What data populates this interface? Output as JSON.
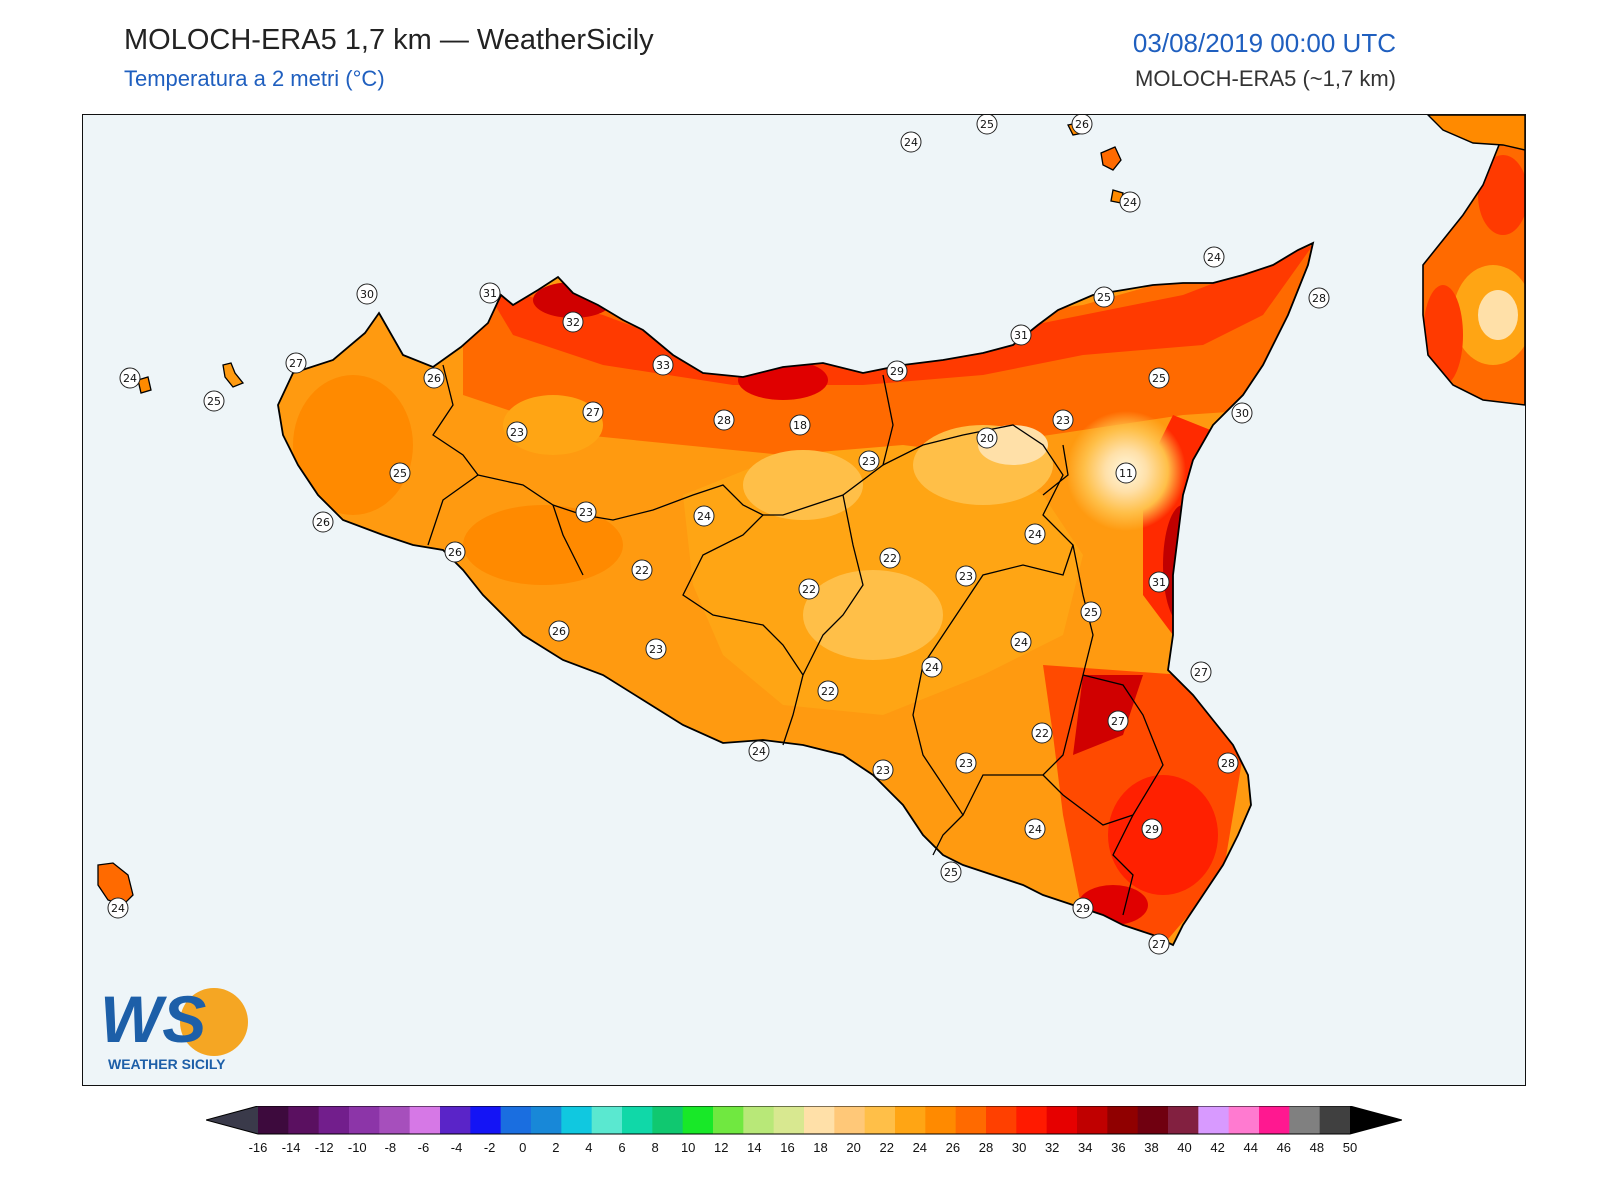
{
  "header": {
    "title": "MOLOCH-ERA5 1,7 km — WeatherSicily",
    "subtitle": "Temperatura a 2 metri (°C)",
    "datetime": "03/08/2019 00:00 UTC",
    "model": "MOLOCH-ERA5 (~1,7 km)"
  },
  "logo": {
    "text": "WEATHER SICILY",
    "letters": "WS"
  },
  "stations": [
    {
      "value": "24"
    },
    {
      "value": "25"
    },
    {
      "value": "26"
    },
    {
      "value": "24"
    },
    {
      "value": "24"
    },
    {
      "value": "25"
    },
    {
      "value": "28"
    },
    {
      "value": "30"
    },
    {
      "value": "31"
    },
    {
      "value": "32"
    },
    {
      "value": "27"
    },
    {
      "value": "26"
    },
    {
      "value": "24"
    },
    {
      "value": "25"
    },
    {
      "value": "33"
    },
    {
      "value": "29"
    },
    {
      "value": "31"
    },
    {
      "value": "25"
    },
    {
      "value": "27"
    },
    {
      "value": "23"
    },
    {
      "value": "28"
    },
    {
      "value": "18"
    },
    {
      "value": "23"
    },
    {
      "value": "20"
    },
    {
      "value": "23"
    },
    {
      "value": "30"
    },
    {
      "value": "11"
    },
    {
      "value": "25"
    },
    {
      "value": "26"
    },
    {
      "value": "23"
    },
    {
      "value": "24"
    },
    {
      "value": "26"
    },
    {
      "value": "24"
    },
    {
      "value": "22"
    },
    {
      "value": "22"
    },
    {
      "value": "23"
    },
    {
      "value": "31"
    },
    {
      "value": "22"
    },
    {
      "value": "25"
    },
    {
      "value": "24"
    },
    {
      "value": "26"
    },
    {
      "value": "23"
    },
    {
      "value": "24"
    },
    {
      "value": "27"
    },
    {
      "value": "22"
    },
    {
      "value": "27"
    },
    {
      "value": "24"
    },
    {
      "value": "23"
    },
    {
      "value": "22"
    },
    {
      "value": "28"
    },
    {
      "value": "23"
    },
    {
      "value": "24"
    },
    {
      "value": "29"
    },
    {
      "value": "25"
    },
    {
      "value": "29"
    },
    {
      "value": "27"
    },
    {
      "value": "24"
    }
  ],
  "colorbar": {
    "ticks": [
      "-16",
      "-14",
      "-12",
      "-10",
      "-8",
      "-6",
      "-4",
      "-2",
      "0",
      "2",
      "4",
      "6",
      "8",
      "10",
      "12",
      "14",
      "16",
      "18",
      "20",
      "22",
      "24",
      "26",
      "28",
      "30",
      "32",
      "34",
      "36",
      "38",
      "40",
      "42",
      "44",
      "46",
      "48",
      "50"
    ],
    "colors": [
      "#3d0a3d",
      "#5a1060",
      "#721e8c",
      "#8c35a8",
      "#a64fbc",
      "#d678e6",
      "#5a24c8",
      "#1414f5",
      "#1a6ee0",
      "#1888d8",
      "#10c8e0",
      "#5ae8d0",
      "#10d8a8",
      "#10c870",
      "#18e828",
      "#70e840",
      "#b8e878",
      "#d8e890",
      "#ffe0a8",
      "#ffc878",
      "#ffbf48",
      "#ffa514",
      "#ff8a00",
      "#ff6a00",
      "#ff4000",
      "#ff1a00",
      "#e60000",
      "#c00000",
      "#900000",
      "#700010",
      "#822040",
      "#d89aff",
      "#ff7ad0",
      "#ff1890",
      "#808080",
      "#404040"
    ],
    "under_color": "#3a3a4a",
    "over_color": "#000000"
  },
  "colors": {
    "sea": "#eef5f8",
    "land_base": "#ff9a10",
    "land_warm": "#ff6a00",
    "land_hot": "#ff2a00",
    "land_cool": "#ffbf48",
    "land_cold": "#ffe0a8",
    "title_blue": "#1f5fbf"
  }
}
